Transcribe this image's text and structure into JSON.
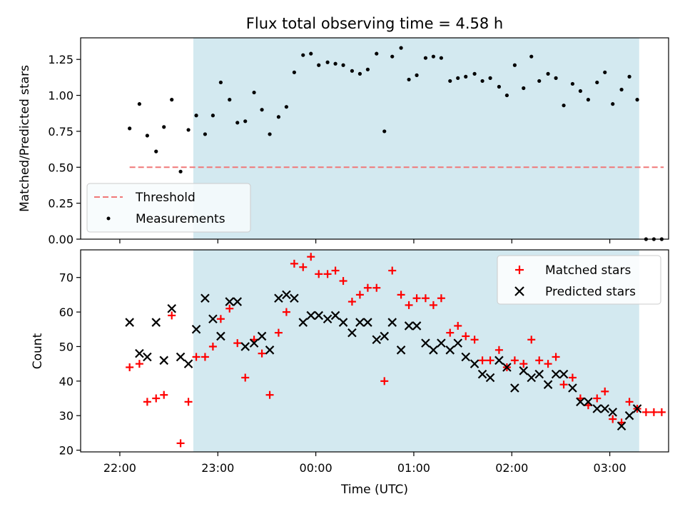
{
  "title": "Flux total observing time = 4.58 h",
  "chart_data": [
    {
      "type": "scatter",
      "panel": "top",
      "title": "Flux total observing time = 4.58 h",
      "ylabel": "Matched/Predicted stars",
      "xlabel": "",
      "xlim": [
        21.6,
        27.6
      ],
      "ylim": [
        0.0,
        1.4
      ],
      "yticks": [
        0.0,
        0.25,
        0.5,
        0.75,
        1.0,
        1.25
      ],
      "ytick_labels": [
        "0.00",
        "0.25",
        "0.50",
        "0.75",
        "1.00",
        "1.25"
      ],
      "shaded_span": [
        22.75,
        27.3
      ],
      "shaded_color": "#d3e9f0",
      "threshold": {
        "label": "Threshold",
        "value": 0.5,
        "x_range": [
          22.1,
          27.55
        ],
        "color": "#f07878"
      },
      "measurements_label": "Measurements",
      "legend_location": "lower-left",
      "points": [
        [
          22.1,
          0.77
        ],
        [
          22.2,
          0.94
        ],
        [
          22.28,
          0.72
        ],
        [
          22.37,
          0.61
        ],
        [
          22.45,
          0.78
        ],
        [
          22.53,
          0.97
        ],
        [
          22.62,
          0.47
        ],
        [
          22.7,
          0.76
        ],
        [
          22.78,
          0.86
        ],
        [
          22.87,
          0.73
        ],
        [
          22.95,
          0.86
        ],
        [
          23.03,
          1.09
        ],
        [
          23.12,
          0.97
        ],
        [
          23.2,
          0.81
        ],
        [
          23.28,
          0.82
        ],
        [
          23.37,
          1.02
        ],
        [
          23.45,
          0.9
        ],
        [
          23.53,
          0.73
        ],
        [
          23.62,
          0.85
        ],
        [
          23.7,
          0.92
        ],
        [
          23.78,
          1.16
        ],
        [
          23.87,
          1.28
        ],
        [
          23.95,
          1.29
        ],
        [
          24.03,
          1.21
        ],
        [
          24.12,
          1.23
        ],
        [
          24.2,
          1.22
        ],
        [
          24.28,
          1.21
        ],
        [
          24.37,
          1.17
        ],
        [
          24.45,
          1.15
        ],
        [
          24.53,
          1.18
        ],
        [
          24.62,
          1.29
        ],
        [
          24.7,
          0.75
        ],
        [
          24.78,
          1.27
        ],
        [
          24.87,
          1.33
        ],
        [
          24.95,
          1.11
        ],
        [
          25.03,
          1.14
        ],
        [
          25.12,
          1.26
        ],
        [
          25.2,
          1.27
        ],
        [
          25.28,
          1.26
        ],
        [
          25.37,
          1.1
        ],
        [
          25.45,
          1.12
        ],
        [
          25.53,
          1.13
        ],
        [
          25.62,
          1.15
        ],
        [
          25.7,
          1.1
        ],
        [
          25.78,
          1.12
        ],
        [
          25.87,
          1.06
        ],
        [
          25.95,
          1.0
        ],
        [
          26.03,
          1.21
        ],
        [
          26.12,
          1.05
        ],
        [
          26.2,
          1.27
        ],
        [
          26.28,
          1.1
        ],
        [
          26.37,
          1.15
        ],
        [
          26.45,
          1.12
        ],
        [
          26.53,
          0.93
        ],
        [
          26.62,
          1.08
        ],
        [
          26.7,
          1.03
        ],
        [
          26.78,
          0.97
        ],
        [
          26.87,
          1.09
        ],
        [
          26.95,
          1.16
        ],
        [
          27.03,
          0.94
        ],
        [
          27.12,
          1.04
        ],
        [
          27.2,
          1.13
        ],
        [
          27.28,
          0.97
        ],
        [
          27.37,
          0.0
        ],
        [
          27.45,
          0.0
        ],
        [
          27.53,
          0.0
        ]
      ]
    },
    {
      "type": "scatter",
      "panel": "bottom",
      "ylabel": "Count",
      "xlabel": "Time (UTC)",
      "xlim": [
        21.6,
        27.6
      ],
      "ylim": [
        19.5,
        78
      ],
      "yticks": [
        20,
        30,
        40,
        50,
        60,
        70
      ],
      "ytick_labels": [
        "20",
        "30",
        "40",
        "50",
        "60",
        "70"
      ],
      "xticks": [
        22,
        23,
        24,
        25,
        26,
        27
      ],
      "xtick_labels": [
        "22:00",
        "23:00",
        "00:00",
        "01:00",
        "02:00",
        "03:00"
      ],
      "shaded_span": [
        22.75,
        27.3
      ],
      "legend_location": "upper-right",
      "series": [
        {
          "name": "Matched stars",
          "marker": "plus",
          "color": "#ff0000",
          "points": [
            [
              22.1,
              44
            ],
            [
              22.2,
              45
            ],
            [
              22.28,
              34
            ],
            [
              22.37,
              35
            ],
            [
              22.45,
              36
            ],
            [
              22.53,
              59
            ],
            [
              22.62,
              22
            ],
            [
              22.7,
              34
            ],
            [
              22.78,
              47
            ],
            [
              22.87,
              47
            ],
            [
              22.95,
              50
            ],
            [
              23.03,
              58
            ],
            [
              23.12,
              61
            ],
            [
              23.2,
              51
            ],
            [
              23.28,
              41
            ],
            [
              23.37,
              52
            ],
            [
              23.45,
              48
            ],
            [
              23.53,
              36
            ],
            [
              23.62,
              54
            ],
            [
              23.7,
              60
            ],
            [
              23.78,
              74
            ],
            [
              23.87,
              73
            ],
            [
              23.95,
              76
            ],
            [
              24.03,
              71
            ],
            [
              24.12,
              71
            ],
            [
              24.2,
              72
            ],
            [
              24.28,
              69
            ],
            [
              24.37,
              63
            ],
            [
              24.45,
              65
            ],
            [
              24.53,
              67
            ],
            [
              24.62,
              67
            ],
            [
              24.7,
              40
            ],
            [
              24.78,
              72
            ],
            [
              24.87,
              65
            ],
            [
              24.95,
              62
            ],
            [
              25.03,
              64
            ],
            [
              25.12,
              64
            ],
            [
              25.2,
              62
            ],
            [
              25.28,
              64
            ],
            [
              25.37,
              54
            ],
            [
              25.45,
              56
            ],
            [
              25.53,
              53
            ],
            [
              25.62,
              52
            ],
            [
              25.7,
              46
            ],
            [
              25.78,
              46
            ],
            [
              25.87,
              49
            ],
            [
              25.95,
              44
            ],
            [
              26.03,
              46
            ],
            [
              26.12,
              45
            ],
            [
              26.2,
              52
            ],
            [
              26.28,
              46
            ],
            [
              26.37,
              45
            ],
            [
              26.45,
              47
            ],
            [
              26.53,
              39
            ],
            [
              26.62,
              41
            ],
            [
              26.7,
              35
            ],
            [
              26.78,
              33
            ],
            [
              26.87,
              35
            ],
            [
              26.95,
              37
            ],
            [
              27.03,
              29
            ],
            [
              27.12,
              28
            ],
            [
              27.2,
              34
            ],
            [
              27.28,
              32
            ],
            [
              27.37,
              31
            ],
            [
              27.45,
              31
            ],
            [
              27.53,
              31
            ]
          ]
        },
        {
          "name": "Predicted stars",
          "marker": "x",
          "color": "#000000",
          "points": [
            [
              22.1,
              57
            ],
            [
              22.2,
              48
            ],
            [
              22.28,
              47
            ],
            [
              22.37,
              57
            ],
            [
              22.45,
              46
            ],
            [
              22.53,
              61
            ],
            [
              22.62,
              47
            ],
            [
              22.7,
              45
            ],
            [
              22.78,
              55
            ],
            [
              22.87,
              64
            ],
            [
              22.95,
              58
            ],
            [
              23.03,
              53
            ],
            [
              23.12,
              63
            ],
            [
              23.2,
              63
            ],
            [
              23.28,
              50
            ],
            [
              23.37,
              51
            ],
            [
              23.45,
              53
            ],
            [
              23.53,
              49
            ],
            [
              23.62,
              64
            ],
            [
              23.7,
              65
            ],
            [
              23.78,
              64
            ],
            [
              23.87,
              57
            ],
            [
              23.95,
              59
            ],
            [
              24.03,
              59
            ],
            [
              24.12,
              58
            ],
            [
              24.2,
              59
            ],
            [
              24.28,
              57
            ],
            [
              24.37,
              54
            ],
            [
              24.45,
              57
            ],
            [
              24.53,
              57
            ],
            [
              24.62,
              52
            ],
            [
              24.7,
              53
            ],
            [
              24.78,
              57
            ],
            [
              24.87,
              49
            ],
            [
              24.95,
              56
            ],
            [
              25.03,
              56
            ],
            [
              25.12,
              51
            ],
            [
              25.2,
              49
            ],
            [
              25.28,
              51
            ],
            [
              25.37,
              49
            ],
            [
              25.45,
              51
            ],
            [
              25.53,
              47
            ],
            [
              25.62,
              45
            ],
            [
              25.7,
              42
            ],
            [
              25.78,
              41
            ],
            [
              25.87,
              46
            ],
            [
              25.95,
              44
            ],
            [
              26.03,
              38
            ],
            [
              26.12,
              43
            ],
            [
              26.2,
              41
            ],
            [
              26.28,
              42
            ],
            [
              26.37,
              39
            ],
            [
              26.45,
              42
            ],
            [
              26.53,
              42
            ],
            [
              26.62,
              38
            ],
            [
              26.7,
              34
            ],
            [
              26.78,
              34
            ],
            [
              26.87,
              32
            ],
            [
              26.95,
              32
            ],
            [
              27.03,
              31
            ],
            [
              27.12,
              27
            ],
            [
              27.2,
              30
            ],
            [
              27.28,
              32
            ]
          ]
        }
      ]
    }
  ]
}
